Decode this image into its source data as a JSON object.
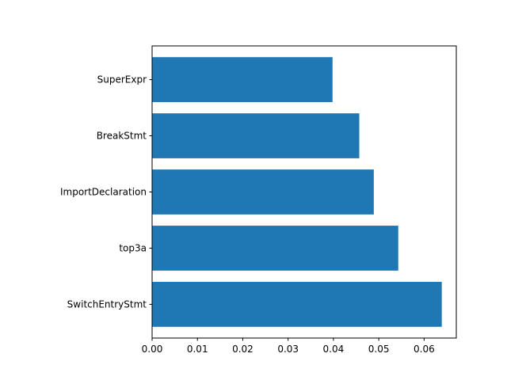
{
  "chart_data": {
    "type": "bar",
    "orientation": "horizontal",
    "title": "",
    "xlabel": "",
    "ylabel": "",
    "categories": [
      "SwitchEntryStmt",
      "top3a",
      "ImportDeclaration",
      "BreakStmt",
      "SuperExpr"
    ],
    "values": [
      0.0639,
      0.0543,
      0.0489,
      0.0457,
      0.0398
    ],
    "xlim": [
      0,
      0.0671
    ],
    "xticks": [
      0.0,
      0.01,
      0.02,
      0.03,
      0.04,
      0.05,
      0.06
    ],
    "xtick_labels": [
      "0.00",
      "0.01",
      "0.02",
      "0.03",
      "0.04",
      "0.05",
      "0.06"
    ],
    "grid": false,
    "legend": "none",
    "colors": {
      "bar": "#1f77b4",
      "axis": "#000000",
      "background": "#ffffff"
    }
  }
}
